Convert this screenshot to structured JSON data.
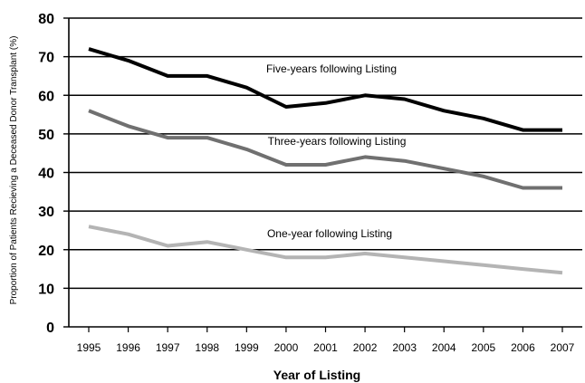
{
  "chart_data": {
    "type": "line",
    "title": "",
    "xlabel": "Year of Listing",
    "ylabel": "Proportion of Patients Recieving a Deceased Donor Transplant (%)",
    "x": [
      "1995",
      "1996",
      "1997",
      "1998",
      "1999",
      "2000",
      "2001",
      "2002",
      "2003",
      "2004",
      "2005",
      "2006",
      "2007"
    ],
    "ylim": [
      0,
      80
    ],
    "yticks": [
      0,
      10,
      20,
      30,
      40,
      50,
      60,
      70,
      80
    ],
    "grid": "horizontal",
    "series": [
      {
        "name": "Five-years following Listing",
        "color": "#000000",
        "values": [
          72,
          69,
          65,
          65,
          62,
          57,
          58,
          60,
          59,
          56,
          54,
          51,
          51
        ]
      },
      {
        "name": "Three-years following Listing",
        "color": "#707070",
        "values": [
          56,
          52,
          49,
          49,
          46,
          42,
          42,
          44,
          43,
          41,
          39,
          36,
          36
        ]
      },
      {
        "name": "One-year following Listing",
        "color": "#b4b4b4",
        "values": [
          26,
          24,
          21,
          22,
          20,
          18,
          18,
          19,
          18,
          17,
          16,
          15,
          14
        ]
      }
    ]
  }
}
